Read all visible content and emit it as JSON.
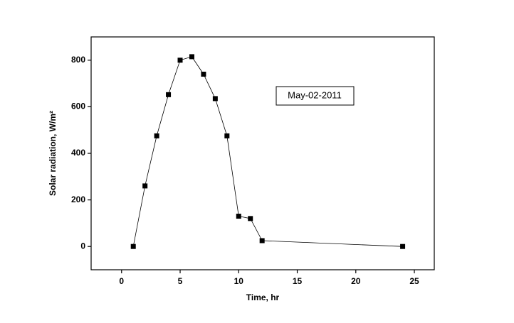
{
  "chart_data": {
    "type": "line",
    "annotation": "May-02-2011",
    "x_label": "Time, hr",
    "y_label": "Solar radiation, W/m²",
    "x": [
      1,
      2,
      3,
      4,
      5,
      6,
      7,
      8,
      9,
      10,
      11,
      12,
      24
    ],
    "series": [
      {
        "color": "#000000",
        "values": [
          0,
          260,
          475,
          652,
          800,
          815,
          740,
          635,
          475,
          130,
          120,
          25,
          0
        ]
      }
    ],
    "xlim": [
      -2.6,
      26.7
    ],
    "xticks": [
      0,
      5,
      10,
      15,
      20,
      25
    ],
    "ylim": [
      -100,
      900
    ],
    "yticks": [
      0,
      200,
      400,
      600,
      800
    ]
  }
}
